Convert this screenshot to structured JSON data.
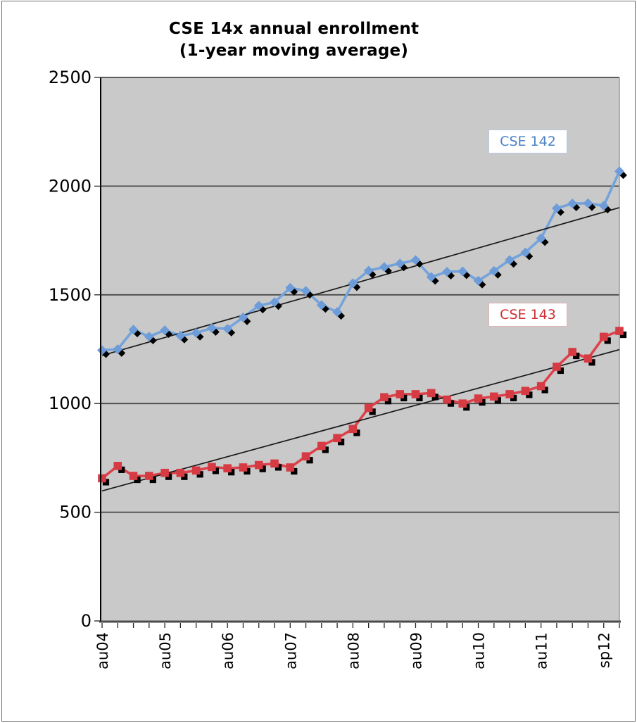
{
  "title": {
    "line1": "CSE 14x annual enrollment",
    "line2": "(1-year moving average)"
  },
  "chart_data": {
    "type": "line",
    "title": "CSE 14x annual enrollment (1-year moving average)",
    "plot_bg": "#c9c9c9",
    "grid": "on",
    "legend_position": "floating-inside",
    "y_axis": {
      "min": 0,
      "max": 2500,
      "tick_interval": 500,
      "tick_labels": [
        "0",
        "500",
        "1000",
        "1500",
        "2000",
        "2500"
      ]
    },
    "x_axis": {
      "total_points": 34,
      "minor_tick_every": 1,
      "tick_labels": [
        {
          "text": "au04",
          "index": 0
        },
        {
          "text": "au05",
          "index": 4
        },
        {
          "text": "au06",
          "index": 8
        },
        {
          "text": "au07",
          "index": 12
        },
        {
          "text": "au08",
          "index": 16
        },
        {
          "text": "au09",
          "index": 20
        },
        {
          "text": "au10",
          "index": 24
        },
        {
          "text": "au11",
          "index": 28
        },
        {
          "text": "sp12",
          "index": 32
        }
      ]
    },
    "series": [
      {
        "name": "CSE 142",
        "line_color": "#74a3dc",
        "marker_color": "#6d9cd9",
        "marker": "diamond",
        "label_text_color": "#4a82c6",
        "values": [
          1245,
          1250,
          1340,
          1308,
          1337,
          1312,
          1325,
          1347,
          1344,
          1396,
          1450,
          1466,
          1532,
          1518,
          1453,
          1421,
          1553,
          1611,
          1628,
          1644,
          1660,
          1582,
          1606,
          1608,
          1565,
          1610,
          1660,
          1695,
          1760,
          1898,
          1920,
          1921,
          1910,
          2068
        ]
      },
      {
        "name": "CSE 143",
        "line_color": "#dd424a",
        "marker_color": "#d63a42",
        "marker": "square",
        "label_text_color": "#cd2f36",
        "values": [
          656,
          713,
          667,
          667,
          681,
          681,
          692,
          708,
          702,
          706,
          717,
          724,
          706,
          757,
          805,
          841,
          883,
          980,
          1029,
          1043,
          1043,
          1048,
          1018,
          1000,
          1023,
          1032,
          1043,
          1058,
          1080,
          1169,
          1237,
          1207,
          1307,
          1334
        ]
      }
    ],
    "trendlines": [
      {
        "series": "CSE 142",
        "start_value": 1221,
        "end_value": 1901,
        "color": "#1a1a1a"
      },
      {
        "series": "CSE 143",
        "start_value": 598,
        "end_value": 1248,
        "color": "#1a1a1a"
      }
    ],
    "legend_labels": [
      {
        "text": "CSE 142"
      },
      {
        "text": "CSE 143"
      }
    ]
  }
}
